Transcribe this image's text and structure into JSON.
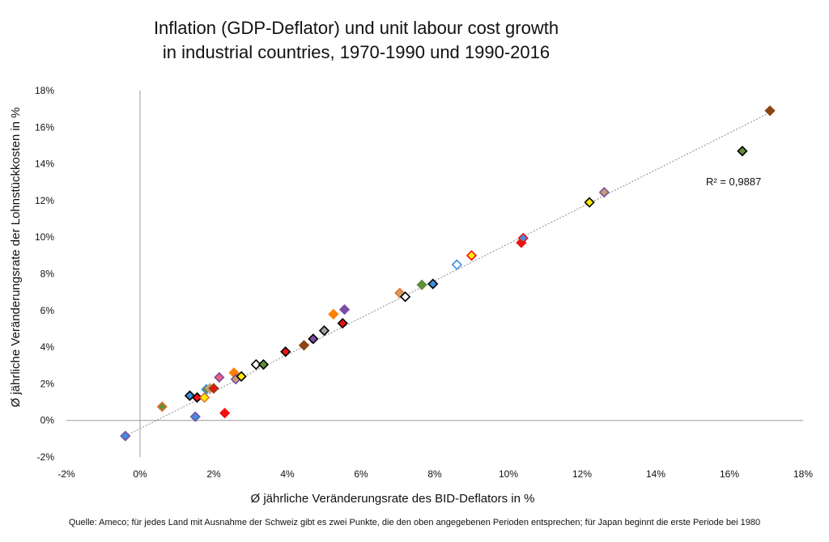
{
  "chart_data": {
    "type": "scatter",
    "title_lines": [
      "Inflation (GDP-Deflator) und unit labour cost growth",
      "in industrial countries, 1970-1990 und 1990-2016"
    ],
    "xlabel": "Ø jährliche Veränderungsrate des BID-Deflators in %",
    "ylabel": "Ø jährliche Veränderungsrate der Lohnstückkosten in %",
    "xlim": [
      -2,
      18
    ],
    "ylim": [
      -2,
      18
    ],
    "x_ticks": [
      "-2%",
      "0%",
      "2%",
      "4%",
      "6%",
      "8%",
      "10%",
      "12%",
      "14%",
      "16%",
      "18%"
    ],
    "y_ticks": [
      "-2%",
      "0%",
      "2%",
      "4%",
      "6%",
      "8%",
      "10%",
      "12%",
      "14%",
      "16%",
      "18%"
    ],
    "grid": false,
    "trendline": {
      "type": "linear",
      "style": "dotted",
      "x": [
        -0.4,
        17.1
      ],
      "y": [
        -0.85,
        16.8
      ]
    },
    "r_squared_label": "R² = 0,9887",
    "points": [
      {
        "x": -0.4,
        "y": -0.85,
        "fill": "#3d8fe0",
        "stroke": "#7a4ea3"
      },
      {
        "x": 0.6,
        "y": 0.75,
        "fill": "#5e8f3a",
        "stroke": "#e8702a"
      },
      {
        "x": 1.35,
        "y": 1.35,
        "fill": "#3d8fe0",
        "stroke": "#000000"
      },
      {
        "x": 1.5,
        "y": 0.2,
        "fill": "#3d8fe0",
        "stroke": "#7a4ea3"
      },
      {
        "x": 1.55,
        "y": 1.25,
        "fill": "#ee1111",
        "stroke": "#000000"
      },
      {
        "x": 1.75,
        "y": 1.25,
        "fill": "#ffee00",
        "stroke": "#e8702a"
      },
      {
        "x": 1.8,
        "y": 1.7,
        "fill": "#5e8f3a",
        "stroke": "#3d8fe0"
      },
      {
        "x": 1.9,
        "y": 1.75,
        "fill": "#c8a070",
        "stroke": "#c8a070"
      },
      {
        "x": 2.0,
        "y": 1.75,
        "fill": "#ee1111",
        "stroke": "#8b4513"
      },
      {
        "x": 2.15,
        "y": 2.35,
        "fill": "#e86080",
        "stroke": "#7a4ea3"
      },
      {
        "x": 2.3,
        "y": 0.4,
        "fill": "#ee1111",
        "stroke": "#ee1111"
      },
      {
        "x": 2.55,
        "y": 2.6,
        "fill": "#ff7f00",
        "stroke": "#ff7f00"
      },
      {
        "x": 2.6,
        "y": 2.25,
        "fill": "#c8a070",
        "stroke": "#7a4ea3"
      },
      {
        "x": 2.75,
        "y": 2.4,
        "fill": "#ffee00",
        "stroke": "#000000"
      },
      {
        "x": 3.15,
        "y": 3.05,
        "fill": "#ffffff",
        "stroke": "#000000"
      },
      {
        "x": 3.35,
        "y": 3.05,
        "fill": "#5e8f3a",
        "stroke": "#000000"
      },
      {
        "x": 3.95,
        "y": 3.75,
        "fill": "#ee1111",
        "stroke": "#000000"
      },
      {
        "x": 4.45,
        "y": 4.1,
        "fill": "#8b4513",
        "stroke": "#8b4513"
      },
      {
        "x": 4.7,
        "y": 4.45,
        "fill": "#7a4ea3",
        "stroke": "#000000"
      },
      {
        "x": 5.0,
        "y": 4.9,
        "fill": "#a0a0a0",
        "stroke": "#000000"
      },
      {
        "x": 5.25,
        "y": 5.8,
        "fill": "#ff7f00",
        "stroke": "#ff7f00"
      },
      {
        "x": 5.5,
        "y": 5.3,
        "fill": "#ee1111",
        "stroke": "#000000"
      },
      {
        "x": 5.55,
        "y": 6.05,
        "fill": "#7a4ea3",
        "stroke": "#7a4ea3"
      },
      {
        "x": 7.05,
        "y": 6.95,
        "fill": "#c8a070",
        "stroke": "#e8702a"
      },
      {
        "x": 7.2,
        "y": 6.75,
        "fill": "#ffffff",
        "stroke": "#000000"
      },
      {
        "x": 7.65,
        "y": 7.4,
        "fill": "#5e8f3a",
        "stroke": "#5e8f3a"
      },
      {
        "x": 7.95,
        "y": 7.45,
        "fill": "#3d8fe0",
        "stroke": "#000000"
      },
      {
        "x": 8.6,
        "y": 8.5,
        "fill": "#ffffff",
        "stroke": "#3d8fe0"
      },
      {
        "x": 9.0,
        "y": 9.0,
        "fill": "#ffee00",
        "stroke": "#ee1111"
      },
      {
        "x": 10.35,
        "y": 9.7,
        "fill": "#ee1111",
        "stroke": "#ee1111"
      },
      {
        "x": 10.4,
        "y": 9.95,
        "fill": "#3d8fe0",
        "stroke": "#ee1111"
      },
      {
        "x": 12.2,
        "y": 11.9,
        "fill": "#ffee00",
        "stroke": "#000000"
      },
      {
        "x": 12.6,
        "y": 12.45,
        "fill": "#c8a070",
        "stroke": "#7a4ea3"
      },
      {
        "x": 16.35,
        "y": 14.7,
        "fill": "#5e8f3a",
        "stroke": "#000000"
      },
      {
        "x": 17.1,
        "y": 16.9,
        "fill": "#8b4513",
        "stroke": "#8b4513"
      }
    ]
  },
  "source_note": "Quelle: Ameco; für jedes Land mit Ausnahme der Schweiz gibt es zwei Punkte, die den oben angegebenen Perioden entsprechen; für Japan beginnt die erste Periode bei 1980"
}
